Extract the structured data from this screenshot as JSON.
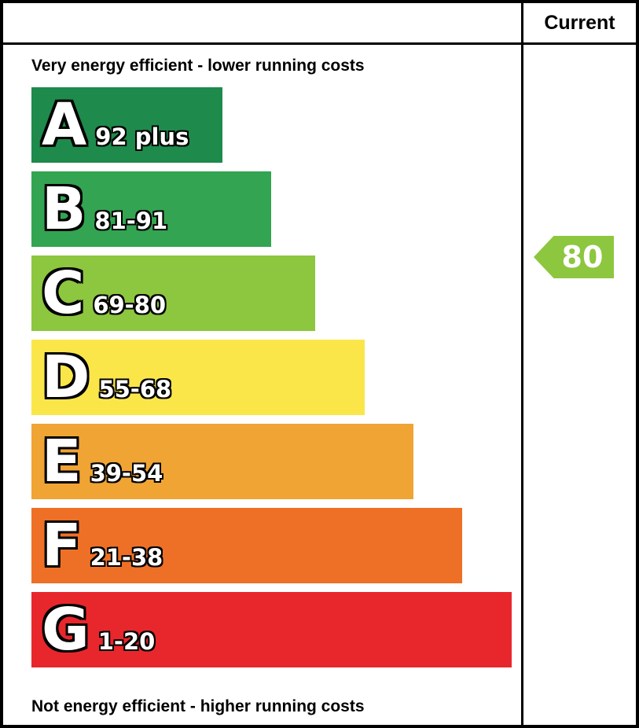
{
  "header": {
    "current_label": "Current"
  },
  "chart_data": {
    "type": "bar",
    "orientation": "horizontal",
    "captions": {
      "top": "Very energy efficient - lower running costs",
      "bottom": "Not energy efficient - higher running costs"
    },
    "bands": [
      {
        "letter": "A",
        "range": "92 plus",
        "color": "#1e8a4b",
        "width_pct": 39
      },
      {
        "letter": "B",
        "range": "81-91",
        "color": "#33a451",
        "width_pct": 49
      },
      {
        "letter": "C",
        "range": "69-80",
        "color": "#8dc63f",
        "width_pct": 58
      },
      {
        "letter": "D",
        "range": "55-68",
        "color": "#fbe64a",
        "width_pct": 68
      },
      {
        "letter": "E",
        "range": "39-54",
        "color": "#f0a433",
        "width_pct": 78
      },
      {
        "letter": "F",
        "range": "21-38",
        "color": "#ee7026",
        "width_pct": 88
      },
      {
        "letter": "G",
        "range": "1-20",
        "color": "#e8272d",
        "width_pct": 98
      }
    ],
    "current": {
      "value": "80",
      "band_index": 2,
      "arrow_color": "#8dc63f"
    }
  }
}
